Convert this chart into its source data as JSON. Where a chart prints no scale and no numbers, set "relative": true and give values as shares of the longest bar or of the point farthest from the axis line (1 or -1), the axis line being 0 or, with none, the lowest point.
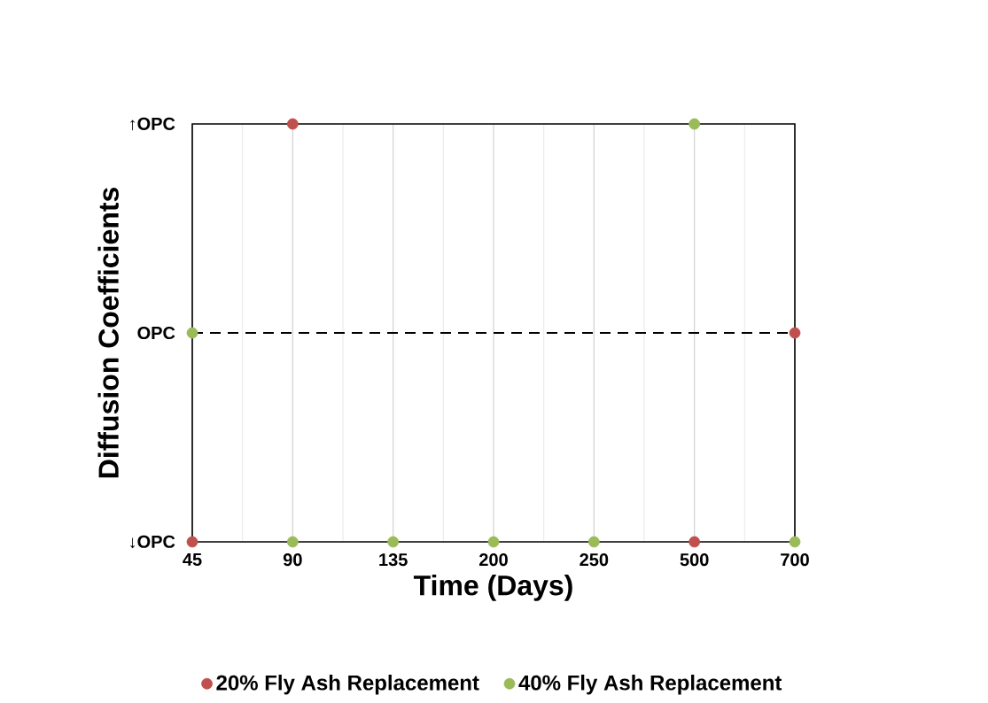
{
  "chart_data": {
    "type": "scatter",
    "xlabel": "Time (Days)",
    "ylabel": "Diffusion Coefficients",
    "categories": [
      "45",
      "90",
      "135",
      "200",
      "250",
      "500",
      "700"
    ],
    "series": [
      {
        "name": "20% Fly Ash Replacement",
        "color": "#c0504d",
        "values": [
          -1,
          1,
          null,
          null,
          null,
          -1,
          0
        ]
      },
      {
        "name": "40% Fly Ash Replacement",
        "color": "#9bbb59",
        "values": [
          0,
          -1,
          -1,
          -1,
          -1,
          1,
          -1
        ]
      }
    ],
    "relative": true,
    "annotations": [
      "↑OPC",
      "OPC",
      "↓OPC"
    ],
    "ref_lines": [
      {
        "axis": "y",
        "value": 0,
        "color": "#000000",
        "line_style": "dashed"
      }
    ],
    "grid": "x",
    "legend": "bottom"
  }
}
